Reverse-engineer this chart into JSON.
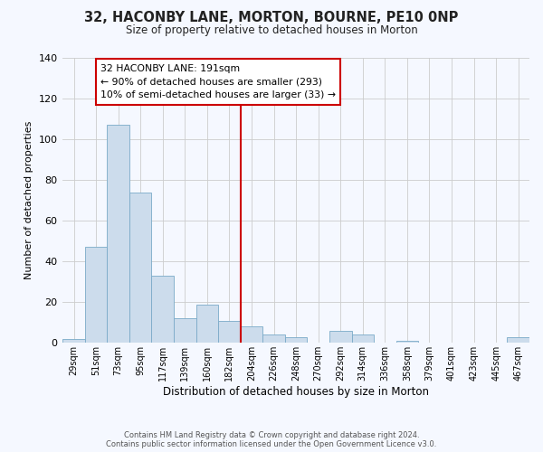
{
  "title": "32, HACONBY LANE, MORTON, BOURNE, PE10 0NP",
  "subtitle": "Size of property relative to detached houses in Morton",
  "xlabel": "Distribution of detached houses by size in Morton",
  "ylabel": "Number of detached properties",
  "bar_color": "#ccdcec",
  "bar_edge_color": "#7aaac8",
  "background_color": "#f5f8ff",
  "plot_bg_color": "#f5f8ff",
  "categories": [
    "29sqm",
    "51sqm",
    "73sqm",
    "95sqm",
    "117sqm",
    "139sqm",
    "160sqm",
    "182sqm",
    "204sqm",
    "226sqm",
    "248sqm",
    "270sqm",
    "292sqm",
    "314sqm",
    "336sqm",
    "358sqm",
    "379sqm",
    "401sqm",
    "423sqm",
    "445sqm",
    "467sqm"
  ],
  "values": [
    2,
    47,
    107,
    74,
    33,
    12,
    19,
    11,
    8,
    4,
    3,
    0,
    6,
    4,
    0,
    1,
    0,
    0,
    0,
    0,
    3
  ],
  "vline_x": 7.5,
  "vline_color": "#cc0000",
  "ylim": [
    0,
    140
  ],
  "yticks": [
    0,
    20,
    40,
    60,
    80,
    100,
    120,
    140
  ],
  "annotation_title": "32 HACONBY LANE: 191sqm",
  "annotation_line1": "← 90% of detached houses are smaller (293)",
  "annotation_line2": "10% of semi-detached houses are larger (33) →",
  "annotation_box_color": "#ffffff",
  "annotation_box_edge_color": "#cc0000",
  "footnote1": "Contains HM Land Registry data © Crown copyright and database right 2024.",
  "footnote2": "Contains public sector information licensed under the Open Government Licence v3.0."
}
